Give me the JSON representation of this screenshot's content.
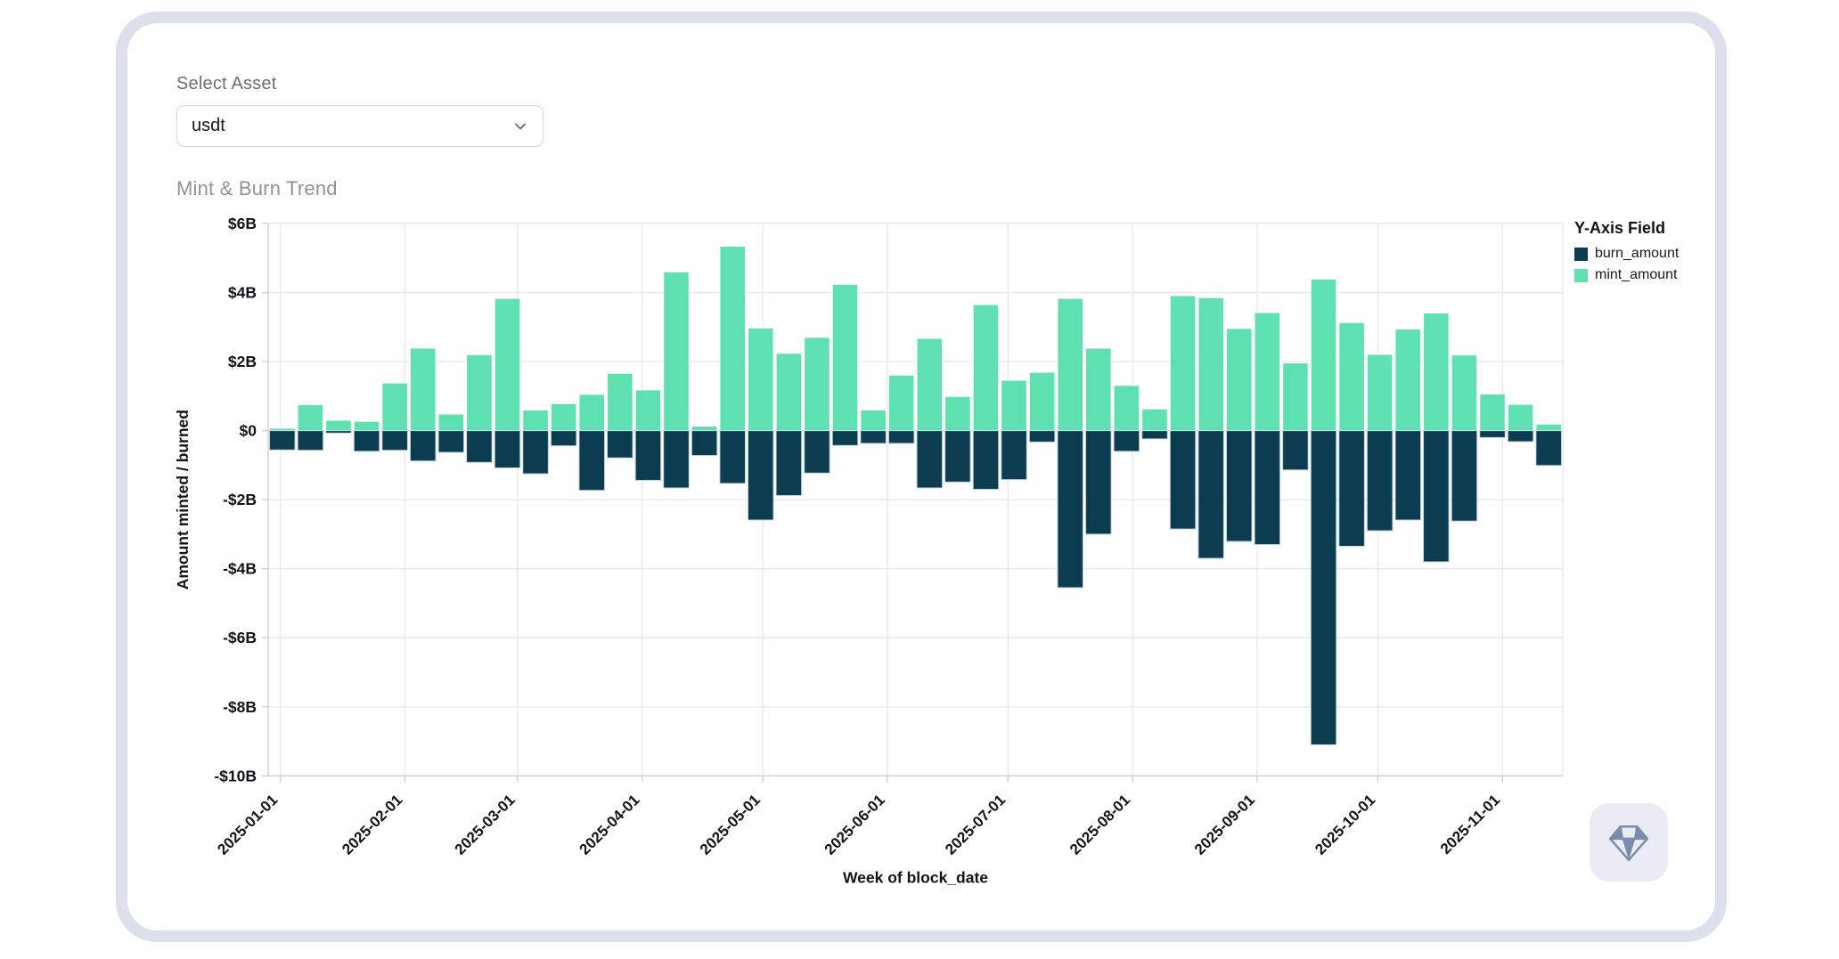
{
  "asset_selector": {
    "label": "Select Asset",
    "value": "usdt"
  },
  "chart": {
    "title": "Mint & Burn Trend",
    "legend": {
      "title": "Y-Axis Field",
      "entries": [
        {
          "label": "burn_amount",
          "color": "#0b3c50"
        },
        {
          "label": "mint_amount",
          "color": "#5fe0b1"
        }
      ]
    }
  },
  "chart_data": {
    "type": "bar",
    "title": "Mint & Burn Trend",
    "xlabel": "Week of block_date",
    "ylabel": "Amount minted / burned",
    "unit": "billions of USD",
    "ylim": [
      -10,
      6
    ],
    "grid": true,
    "legend_position": "right",
    "y_ticks": [
      "$6B",
      "$4B",
      "$2B",
      "$0",
      "-$2B",
      "-$4B",
      "-$6B",
      "-$8B",
      "-$10B"
    ],
    "y_tick_values": [
      6,
      4,
      2,
      0,
      -2,
      -4,
      -6,
      -8,
      -10
    ],
    "x_ticks": [
      "2025-01-01",
      "2025-02-01",
      "2025-03-01",
      "2025-04-01",
      "2025-05-01",
      "2025-06-01",
      "2025-07-01",
      "2025-08-01",
      "2025-09-01",
      "2025-10-01",
      "2025-11-01"
    ],
    "week_starts": [
      "2024-12-29",
      "2025-01-05",
      "2025-01-12",
      "2025-01-19",
      "2025-01-26",
      "2025-02-02",
      "2025-02-09",
      "2025-02-16",
      "2025-02-23",
      "2025-03-02",
      "2025-03-09",
      "2025-03-16",
      "2025-03-23",
      "2025-03-30",
      "2025-04-06",
      "2025-04-13",
      "2025-04-20",
      "2025-04-27",
      "2025-05-04",
      "2025-05-11",
      "2025-05-18",
      "2025-05-25",
      "2025-06-01",
      "2025-06-08",
      "2025-06-15",
      "2025-06-22",
      "2025-06-29",
      "2025-07-06",
      "2025-07-13",
      "2025-07-20",
      "2025-07-27",
      "2025-08-03",
      "2025-08-10",
      "2025-08-17",
      "2025-08-24",
      "2025-08-31",
      "2025-09-07",
      "2025-09-14",
      "2025-09-21",
      "2025-09-28",
      "2025-10-05",
      "2025-10-12",
      "2025-10-19",
      "2025-10-26",
      "2025-11-02",
      "2025-11-09"
    ],
    "series": [
      {
        "name": "mint_amount",
        "color": "#5fe0b1",
        "values": [
          0.07,
          0.75,
          0.3,
          0.27,
          1.38,
          2.39,
          0.48,
          2.2,
          3.83,
          0.6,
          0.78,
          1.05,
          1.66,
          1.18,
          4.6,
          0.13,
          5.34,
          2.97,
          2.24,
          2.7,
          4.24,
          0.6,
          1.61,
          2.67,
          0.99,
          3.65,
          1.46,
          1.69,
          3.83,
          2.39,
          1.31,
          0.63,
          3.91,
          3.85,
          2.96,
          3.42,
          1.96,
          4.39,
          3.13,
          2.21,
          2.94,
          3.41,
          2.19,
          1.06,
          0.76,
          0.19
        ]
      },
      {
        "name": "burn_amount",
        "color": "#0b3c50",
        "values": [
          -0.56,
          -0.57,
          -0.07,
          -0.6,
          -0.57,
          -0.88,
          -0.63,
          -0.92,
          -1.08,
          -1.25,
          -0.44,
          -1.73,
          -0.79,
          -1.44,
          -1.66,
          -0.72,
          -1.53,
          -2.59,
          -1.88,
          -1.23,
          -0.43,
          -0.37,
          -0.37,
          -1.66,
          -1.49,
          -1.7,
          -1.42,
          -0.33,
          -4.55,
          -3.0,
          -0.6,
          -0.24,
          -2.85,
          -3.7,
          -3.21,
          -3.3,
          -1.14,
          -9.1,
          -3.35,
          -2.9,
          -2.59,
          -3.8,
          -2.62,
          -0.2,
          -0.32,
          -1.01
        ]
      }
    ]
  },
  "colors": {
    "card_frame": "#dbe0ea",
    "gridline": "#e8e8e8",
    "axis_domain": "#cfcfcf",
    "tick_text": "#101418",
    "mint": "#5fe0b1",
    "burn": "#0b3c50",
    "gem_icon": "#7a8cad",
    "gem_button_bg": "#e9ecf4"
  }
}
